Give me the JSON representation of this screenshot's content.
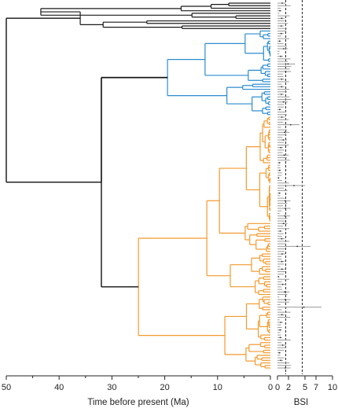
{
  "chart_data": [
    {
      "type": "phylogenetic-tree",
      "xlabel": "Time before present (Ma)",
      "xlim": [
        50,
        0
      ],
      "x_ticks": [
        "50",
        "40",
        "30",
        "20",
        "10",
        "0"
      ],
      "root_age": 50,
      "clades": [
        {
          "color": "#1a1a1a",
          "crown_age": 50,
          "tips": 11
        },
        {
          "color": "#2b8ccf",
          "crown_age": 19.5,
          "tips": 34
        },
        {
          "color": "#f29a2e",
          "crown_age": 25,
          "tips": 100
        }
      ]
    },
    {
      "type": "bar",
      "xlabel": "BSI",
      "xlim": [
        0,
        10
      ],
      "x_ticks": [
        "0",
        "2",
        "5",
        "7",
        "10"
      ],
      "reference_lines": [
        1.5,
        4.5
      ],
      "bar_color": "#9a9a9a",
      "typical_value_range": [
        0.3,
        2.5
      ],
      "outliers": [
        3.2,
        4.0,
        5.0,
        6.0,
        8.0
      ]
    }
  ]
}
